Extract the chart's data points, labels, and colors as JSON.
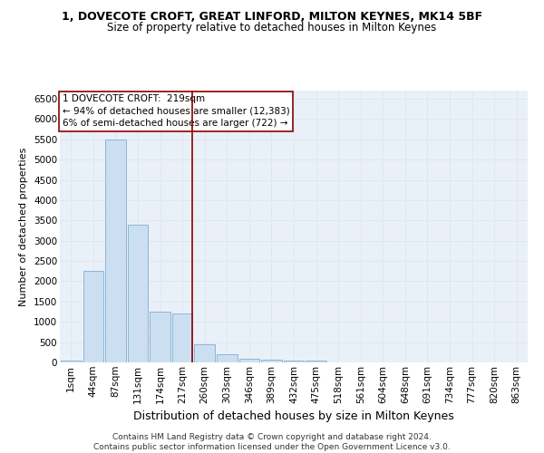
{
  "title": "1, DOVECOTE CROFT, GREAT LINFORD, MILTON KEYNES, MK14 5BF",
  "subtitle": "Size of property relative to detached houses in Milton Keynes",
  "xlabel": "Distribution of detached houses by size in Milton Keynes",
  "ylabel": "Number of detached properties",
  "bar_color": "#ccdff0",
  "bar_edge_color": "#7bafd4",
  "bin_labels": [
    "1sqm",
    "44sqm",
    "87sqm",
    "131sqm",
    "174sqm",
    "217sqm",
    "260sqm",
    "303sqm",
    "346sqm",
    "389sqm",
    "432sqm",
    "475sqm",
    "518sqm",
    "561sqm",
    "604sqm",
    "648sqm",
    "691sqm",
    "734sqm",
    "777sqm",
    "820sqm",
    "863sqm"
  ],
  "bar_heights": [
    50,
    2250,
    5500,
    3400,
    1250,
    1200,
    450,
    200,
    90,
    65,
    45,
    45,
    6,
    4,
    2,
    2,
    1,
    1,
    0,
    0,
    0
  ],
  "ylim": [
    0,
    6700
  ],
  "yticks": [
    0,
    500,
    1000,
    1500,
    2000,
    2500,
    3000,
    3500,
    4000,
    4500,
    5000,
    5500,
    6000,
    6500
  ],
  "vline_bin_index": 5,
  "annotation_text": "1 DOVECOTE CROFT:  219sqm\n← 94% of detached houses are smaller (12,383)\n6% of semi-detached houses are larger (722) →",
  "footer_text": "Contains HM Land Registry data © Crown copyright and database right 2024.\nContains public sector information licensed under the Open Government Licence v3.0.",
  "grid_color": "#dce8f0",
  "background_color": "#eaf0f8",
  "title_fontsize": 9,
  "subtitle_fontsize": 8.5,
  "ylabel_fontsize": 8,
  "xlabel_fontsize": 9,
  "tick_fontsize": 7.5,
  "annotation_fontsize": 7.5,
  "footer_fontsize": 6.5
}
